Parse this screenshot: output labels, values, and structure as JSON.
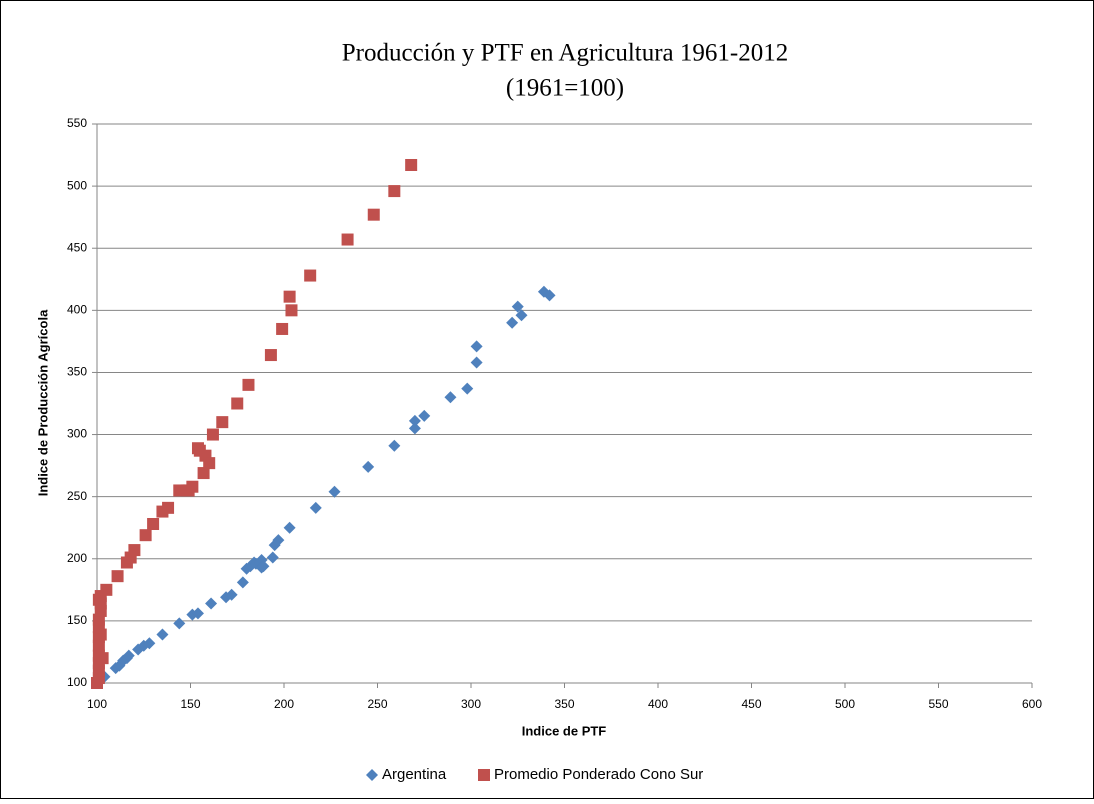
{
  "chart_data": {
    "type": "scatter",
    "title": "Producción y PTF en Agricultura 1961-2012",
    "subtitle": "(1961=100)",
    "x_label": "Indice de PTF",
    "y_label": "Indice de Producción Agrícola",
    "xlim": [
      100,
      600
    ],
    "xticks": [
      100,
      150,
      200,
      250,
      300,
      350,
      400,
      450,
      500,
      550,
      600
    ],
    "ylim": [
      100,
      550
    ],
    "yticks": [
      100,
      150,
      200,
      250,
      300,
      350,
      400,
      450,
      500,
      550
    ],
    "grid": true,
    "legend": "bottom",
    "series": [
      {
        "name": "Argentina",
        "color": "#4f81bd",
        "marker": "diamond",
        "x": [
          100,
          104,
          110,
          112,
          114,
          116,
          117,
          122,
          125,
          128,
          135,
          144,
          151,
          154,
          161,
          169,
          172,
          178,
          180,
          182,
          184,
          185,
          187,
          188,
          188,
          189,
          194,
          195,
          197,
          203,
          217,
          227,
          245,
          259,
          270,
          270,
          275,
          289,
          298,
          303,
          303,
          322,
          325,
          327,
          339,
          342
        ],
        "values": [
          100,
          105,
          112,
          114,
          118,
          120,
          122,
          127,
          130,
          132,
          139,
          148,
          155,
          156,
          164,
          169,
          171,
          181,
          192,
          194,
          197,
          196,
          197,
          199,
          193,
          194,
          201,
          211,
          215,
          225,
          241,
          254,
          274,
          291,
          311,
          305,
          315,
          330,
          337,
          358,
          371,
          390,
          403,
          396,
          415,
          412
        ]
      },
      {
        "name": "Promedio Ponderado Cono Sur",
        "color": "#c0504d",
        "marker": "square",
        "x": [
          100,
          101,
          101,
          101,
          101,
          103,
          101,
          101,
          102,
          101,
          101,
          102,
          102,
          101,
          102,
          105,
          111,
          116,
          118,
          120,
          126,
          130,
          135,
          138,
          144,
          148,
          149,
          151,
          154,
          155,
          157,
          158,
          160,
          162,
          167,
          175,
          181,
          193,
          199,
          203,
          204,
          214,
          234,
          248,
          259,
          268
        ],
        "values": [
          100,
          104,
          110,
          116,
          122,
          120,
          130,
          137,
          139,
          145,
          151,
          158,
          164,
          167,
          170,
          175,
          186,
          197,
          201,
          207,
          219,
          228,
          238,
          241,
          255,
          255,
          255,
          258,
          289,
          287,
          269,
          283,
          277,
          300,
          310,
          325,
          340,
          364,
          385,
          411,
          400,
          428,
          457,
          477,
          496,
          517
        ]
      }
    ]
  }
}
